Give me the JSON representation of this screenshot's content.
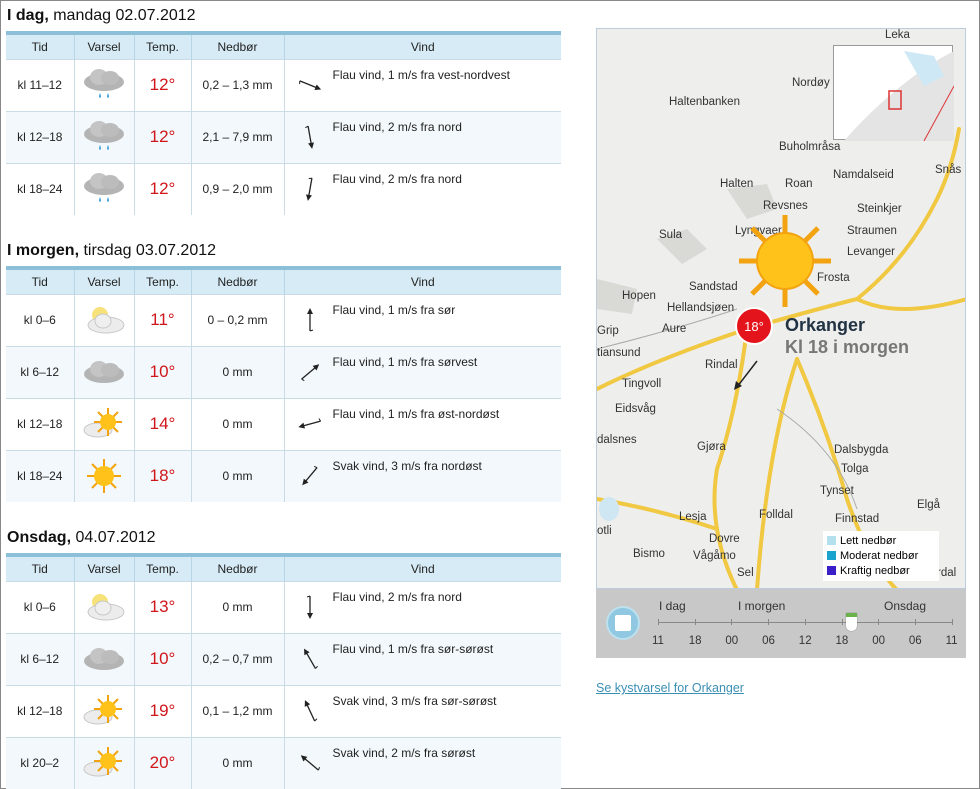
{
  "columns": [
    "Tid",
    "Varsel",
    "Temp.",
    "Nedbør",
    "Vind"
  ],
  "sections": [
    {
      "title_bold": "I dag,",
      "title_rest": " mandag 02.07.2012",
      "rows": [
        {
          "tid": "kl 11–12",
          "icon": "cloud-rain-icon",
          "temp": "12°",
          "nedbor": "0,2 – 1,3 mm",
          "vind": "Flau vind, 1 m/s fra vest-nordvest",
          "arrow_deg": 112
        },
        {
          "tid": "kl 12–18",
          "icon": "cloud-rain-icon",
          "temp": "12°",
          "nedbor": "2,1 – 7,9 mm",
          "vind": "Flau vind, 2 m/s fra nord",
          "arrow_deg": 170
        },
        {
          "tid": "kl 18–24",
          "icon": "cloud-rain-icon",
          "temp": "12°",
          "nedbor": "0,9 – 2,0 mm",
          "vind": "Flau vind, 2 m/s fra nord",
          "arrow_deg": 190
        }
      ]
    },
    {
      "title_bold": "I morgen,",
      "title_rest": " tirsdag 03.07.2012",
      "rows": [
        {
          "tid": "kl 0–6",
          "icon": "partly-cloudy-icon",
          "temp": "11°",
          "nedbor": "0 – 0,2 mm",
          "vind": "Flau vind, 1 m/s fra sør",
          "arrow_deg": 0
        },
        {
          "tid": "kl 6–12",
          "icon": "cloud-icon",
          "temp": "10°",
          "nedbor": "0 mm",
          "vind": "Flau vind, 1 m/s fra sørvest",
          "arrow_deg": 50
        },
        {
          "tid": "kl 12–18",
          "icon": "sun-cloud-icon",
          "temp": "14°",
          "nedbor": "0 mm",
          "vind": "Flau vind, 1 m/s fra øst-nordøst",
          "arrow_deg": 255
        },
        {
          "tid": "kl 18–24",
          "icon": "sun-icon",
          "temp": "18°",
          "nedbor": "0 mm",
          "vind": "Svak vind, 3 m/s fra nordøst",
          "arrow_deg": 220
        }
      ]
    },
    {
      "title_bold": "Onsdag,",
      "title_rest": " 04.07.2012",
      "rows": [
        {
          "tid": "kl 0–6",
          "icon": "partly-cloudy-icon",
          "temp": "13°",
          "nedbor": "0 mm",
          "vind": "Flau vind, 2 m/s fra nord",
          "arrow_deg": 180
        },
        {
          "tid": "kl 6–12",
          "icon": "cloud-icon",
          "temp": "10°",
          "nedbor": "0,2 – 0,7 mm",
          "vind": "Flau vind, 1 m/s fra sør-sørøst",
          "arrow_deg": 330
        },
        {
          "tid": "kl 12–18",
          "icon": "sun-cloud-icon",
          "temp": "19°",
          "nedbor": "0,1 – 1,2 mm",
          "vind": "Svak vind, 3 m/s fra sør-sørøst",
          "arrow_deg": 335
        },
        {
          "tid": "kl 20–2",
          "icon": "sun-cloud-icon",
          "temp": "20°",
          "nedbor": "0 mm",
          "vind": "Svak vind, 2 m/s fra sørøst",
          "arrow_deg": 310
        }
      ]
    }
  ],
  "map": {
    "places": [
      "Leka",
      "Nordøy",
      "Haltenbanken",
      "Buholmråsa",
      "Namdalseid",
      "Snås",
      "Halten",
      "Roan",
      "Revsnes",
      "Steinkjer",
      "Sula",
      "Lyngvaer",
      "Straumen",
      "Levanger",
      "Frosta",
      "Sandstad",
      "Hopen",
      "Hellandsjøen",
      "Grip",
      "Aure",
      "tiansund",
      "Rindal",
      "Tingvoll",
      "Eidsvåg",
      "dalsnes",
      "Gjøra",
      "Dalsbygda",
      "Tolga",
      "Tynset",
      "Elgå",
      "Folldal",
      "Finnstad",
      "Lesja",
      "Dovre",
      "otli",
      "Bismo",
      "Vågåmo",
      "Sel",
      "rdal"
    ],
    "marker_temp": "18°",
    "location": "Orkanger",
    "time_label": "Kl 18 i morgen",
    "legend": [
      {
        "label": "Lett nedbør",
        "color": "#b4e0ee"
      },
      {
        "label": "Moderat nedbør",
        "color": "#1aa3cc"
      },
      {
        "label": "Kraftig nedbør",
        "color": "#3a1fc8"
      }
    ]
  },
  "timeline": {
    "days": [
      "I dag",
      "I morgen",
      "Onsdag"
    ],
    "hours": [
      "11",
      "18",
      "00",
      "06",
      "12",
      "18",
      "00",
      "06",
      "11"
    ],
    "selected_index": 5
  },
  "link": "Se kystvarsel for Orkanger"
}
